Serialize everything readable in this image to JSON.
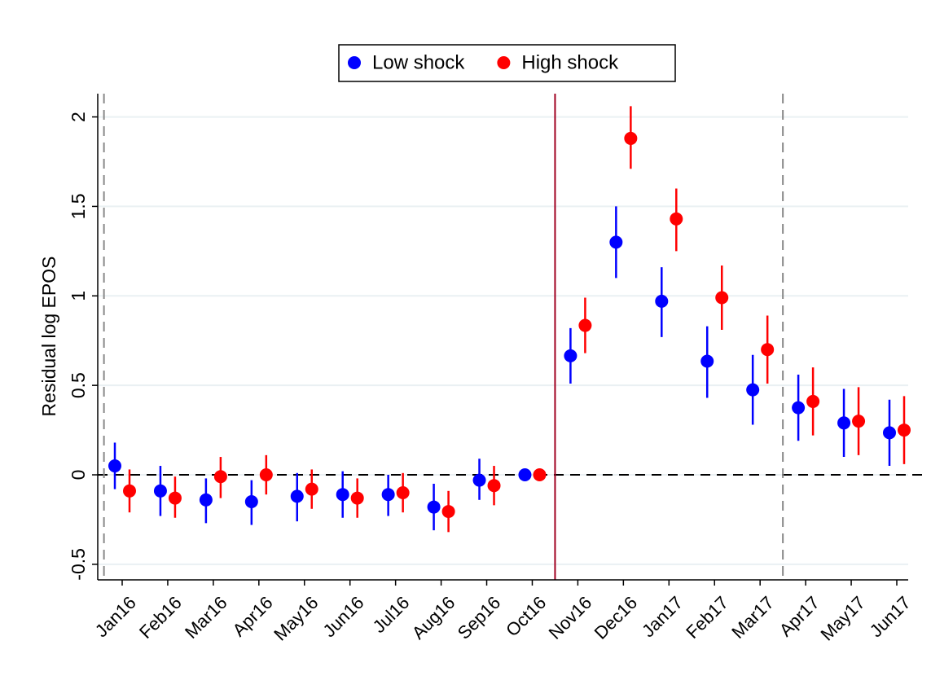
{
  "chart_data": {
    "type": "scatter",
    "y_label": "Residual log EPOS",
    "categories": [
      "Jan16",
      "Feb16",
      "Mar16",
      "Apr16",
      "May16",
      "Jun16",
      "Jul16",
      "Aug16",
      "Sep16",
      "Oct16",
      "Nov16",
      "Dec16",
      "Jan17",
      "Feb17",
      "Mar17",
      "Apr17",
      "May17",
      "Jun17"
    ],
    "series": [
      {
        "name": "Low shock",
        "color": "#0000ff",
        "values": [
          0.05,
          -0.09,
          -0.14,
          -0.15,
          -0.12,
          -0.11,
          -0.11,
          -0.18,
          -0.03,
          0,
          0.665,
          1.3,
          0.97,
          0.635,
          0.475,
          0.375,
          0.29,
          0.235
        ],
        "lower": [
          -0.08,
          -0.23,
          -0.27,
          -0.28,
          -0.26,
          -0.24,
          -0.23,
          -0.31,
          -0.14,
          0,
          0.51,
          1.1,
          0.77,
          0.43,
          0.28,
          0.19,
          0.1,
          0.05
        ],
        "upper": [
          0.18,
          0.05,
          -0.02,
          -0.03,
          0.01,
          0.02,
          0,
          -0.05,
          0.09,
          0,
          0.82,
          1.5,
          1.16,
          0.83,
          0.67,
          0.56,
          0.48,
          0.42
        ]
      },
      {
        "name": "High shock",
        "color": "#ff0000",
        "values": [
          -0.09,
          -0.13,
          -0.01,
          0,
          -0.08,
          -0.13,
          -0.1,
          -0.205,
          -0.06,
          0,
          0.835,
          1.88,
          1.43,
          0.99,
          0.7,
          0.41,
          0.3,
          0.25
        ],
        "lower": [
          -0.21,
          -0.24,
          -0.13,
          -0.11,
          -0.19,
          -0.24,
          -0.21,
          -0.32,
          -0.17,
          0,
          0.68,
          1.71,
          1.25,
          0.81,
          0.51,
          0.22,
          0.11,
          0.06
        ],
        "upper": [
          0.03,
          -0.01,
          0.1,
          0.11,
          0.03,
          -0.02,
          0.01,
          -0.09,
          0.05,
          0,
          0.99,
          2.06,
          1.6,
          1.17,
          0.89,
          0.6,
          0.49,
          0.44
        ]
      }
    ],
    "ylim": [
      -0.587,
      2.13
    ],
    "yticks": [
      -0.5,
      0,
      0.5,
      1,
      1.5,
      2
    ],
    "ytick_labels_note_unused": null,
    "hline": 0,
    "grid": true,
    "legend": "top"
  }
}
